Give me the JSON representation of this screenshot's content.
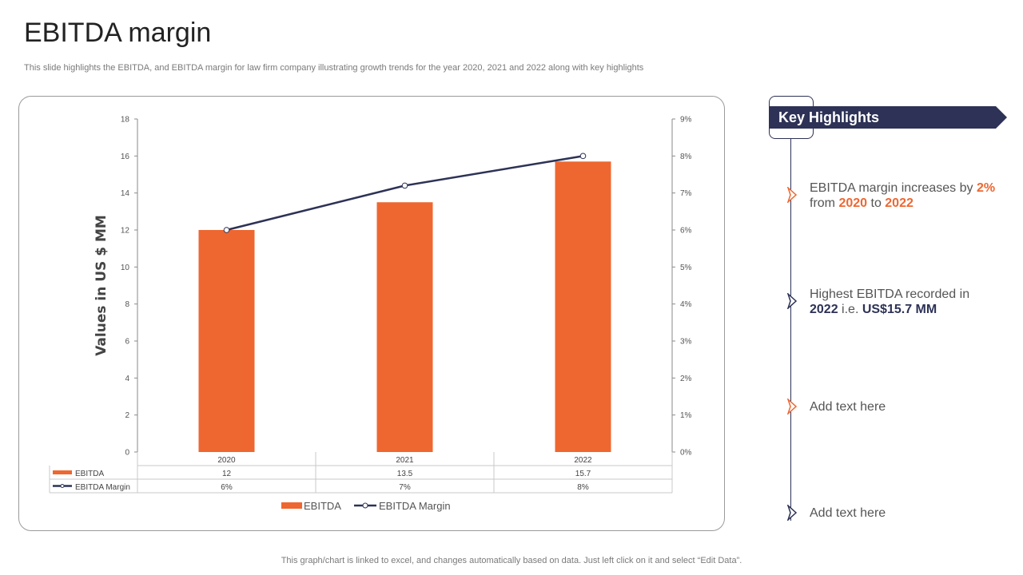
{
  "header": {
    "title": "EBITDA margin",
    "subtitle": "This slide highlights the EBITDA, and EBITDA  margin for law firm company illustrating growth trends for the year 2020, 2021 and 2022 along with key highlights"
  },
  "colors": {
    "accent": "#ee6730",
    "navy": "#2d3256"
  },
  "chart_data": {
    "type": "bar",
    "categories": [
      "2020",
      "2021",
      "2022"
    ],
    "series": [
      {
        "name": "EBITDA",
        "type": "bar",
        "axis": "left",
        "values": [
          12,
          13.5,
          15.7
        ],
        "table_values": [
          "12",
          "13.5",
          "15.7"
        ],
        "color": "#ee6730"
      },
      {
        "name": "EBITDA Margin",
        "type": "line",
        "axis": "right",
        "values": [
          6,
          7.2,
          8
        ],
        "table_values": [
          "6%",
          "7%",
          "8%"
        ],
        "color": "#2d3256"
      }
    ],
    "ylabel": "Values in US $ MM",
    "ylim": [
      0,
      18
    ],
    "yticks": [
      "0",
      "2",
      "4",
      "6",
      "8",
      "10",
      "12",
      "14",
      "16",
      "18"
    ],
    "y2lim": [
      0,
      9
    ],
    "y2ticks": [
      "0%",
      "1%",
      "2%",
      "3%",
      "4%",
      "5%",
      "6%",
      "7%",
      "8%",
      "9%"
    ],
    "legend": [
      "EBITDA",
      "EBITDA Margin"
    ],
    "legend_position": "bottom"
  },
  "highlights": {
    "title": "Key Highlights",
    "item1": {
      "text_a": "EBITDA margin increases by ",
      "pct": "2%",
      "text_b": " from ",
      "year_a": "2020",
      "text_c": " to ",
      "year_b": "2022"
    },
    "item2": {
      "text_a": "Highest EBITDA recorded in ",
      "year": "2022",
      "text_b": " i.e. ",
      "value": "US$15.7 MM"
    },
    "item3": "Add text here",
    "item4": "Add text here"
  },
  "footer": "This graph/chart is linked to excel,  and changes automatically based on data. Just left click on it and select “Edit Data”."
}
